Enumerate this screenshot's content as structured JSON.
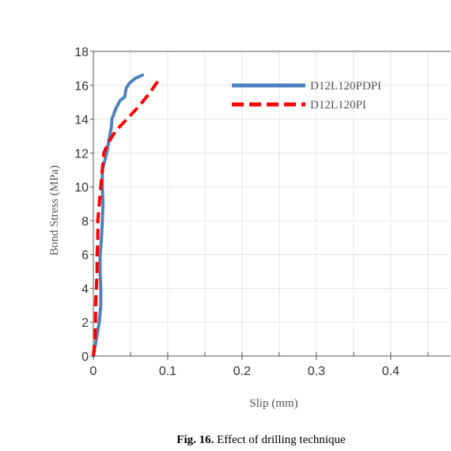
{
  "chart_data": {
    "type": "line",
    "xlabel": "Slip (mm)",
    "ylabel": "Bond Stress (MPa)",
    "xlim": [
      0,
      0.48
    ],
    "ylim": [
      0,
      18
    ],
    "x_ticks": [
      "0",
      "0.1",
      "0.2",
      "0.3",
      "0.4"
    ],
    "y_ticks": [
      "0",
      "2",
      "4",
      "6",
      "8",
      "10",
      "12",
      "14",
      "16",
      "18"
    ],
    "grid": true,
    "legend_position": "top-right",
    "series": [
      {
        "name": "D12L120PDPI",
        "color": "#4f81bd",
        "style": "solid",
        "x": [
          0,
          0.004,
          0.008,
          0.01,
          0.01,
          0.009,
          0.009,
          0.011,
          0.012,
          0.013,
          0.012,
          0.012,
          0.015,
          0.018,
          0.022,
          0.024,
          0.025,
          0.03,
          0.036,
          0.042,
          0.044,
          0.048,
          0.056,
          0.066
        ],
        "y": [
          0,
          1,
          2,
          3,
          4,
          5,
          6,
          7,
          8,
          9,
          10,
          11,
          11.5,
          12,
          13,
          13.5,
          14,
          14.6,
          15.1,
          15.3,
          15.8,
          16.1,
          16.4,
          16.6
        ]
      },
      {
        "name": "D12L120PI",
        "color": "#ff0000",
        "style": "dashed",
        "x": [
          0,
          0.002,
          0.003,
          0.003,
          0.004,
          0.005,
          0.005,
          0.006,
          0.006,
          0.008,
          0.01,
          0.012,
          0.014,
          0.02,
          0.03,
          0.045,
          0.06,
          0.075,
          0.086,
          0.09
        ],
        "y": [
          0,
          1,
          2,
          3,
          4,
          5,
          6,
          7,
          8,
          9,
          10,
          11,
          12,
          12.6,
          13.3,
          14,
          14.7,
          15.5,
          16.2,
          16.5
        ]
      }
    ]
  },
  "caption": {
    "label": "Fig. 16.",
    "text": "Effect of drilling technique"
  }
}
